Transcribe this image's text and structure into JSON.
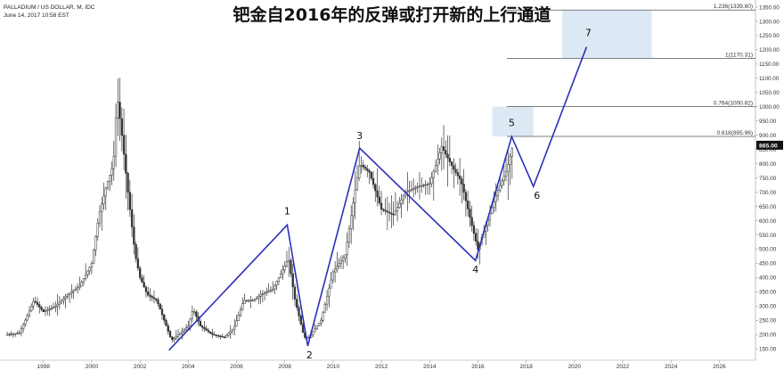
{
  "header": {
    "title": "钯金自2016年的反弹或打开新的上行通道",
    "symbol": "PALLADIUM / US DOLLAR, M, IDC",
    "timestamp": "June 14, 2017 10:58 EST"
  },
  "chart_data": {
    "type": "candlestick",
    "x_ticks": [
      "1998",
      "2000",
      "2002",
      "2004",
      "2006",
      "2008",
      "2010",
      "2012",
      "2014",
      "2016",
      "2018",
      "2020",
      "2022",
      "2024",
      "2026"
    ],
    "x_tick_years": [
      1998,
      2000,
      2002,
      2004,
      2006,
      2008,
      2010,
      2012,
      2014,
      2016,
      2018,
      2020,
      2022,
      2024,
      2026
    ],
    "xlim": [
      1996.2,
      2027.5
    ],
    "y_ticks": [
      150,
      200,
      250,
      300,
      350,
      400,
      450,
      500,
      550,
      600,
      650,
      700,
      750,
      800,
      850,
      900,
      950,
      1000,
      1050,
      1100,
      1150,
      1200,
      1250,
      1300,
      1350
    ],
    "ylim": [
      110,
      1375
    ],
    "current_price": {
      "label": "865.00",
      "value": 865
    },
    "fib_levels": [
      {
        "label": "1.236(1339.80)",
        "value": 1339.8
      },
      {
        "label": "1(1170.31)",
        "value": 1170.31
      },
      {
        "label": "0.764(1000.82)",
        "value": 1000.82
      },
      {
        "label": "0.618(895.96)",
        "value": 895.96
      }
    ],
    "target_zones": [
      {
        "x_from": 2016.6,
        "x_to": 2018.3,
        "y_from": 895.96,
        "y_to": 1000.82
      },
      {
        "x_from": 2019.5,
        "x_to": 2023.2,
        "y_from": 1170.31,
        "y_to": 1339.8
      }
    ],
    "wave_points": [
      {
        "label": "",
        "x": 2003.2,
        "y": 145
      },
      {
        "label": "1",
        "x": 2008.1,
        "y": 585
      },
      {
        "label": "2",
        "x": 2008.95,
        "y": 160
      },
      {
        "label": "3",
        "x": 2011.1,
        "y": 855
      },
      {
        "label": "4",
        "x": 2015.9,
        "y": 460
      },
      {
        "label": "5",
        "x": 2017.4,
        "y": 895
      },
      {
        "label": "6",
        "x": 2018.3,
        "y": 720
      },
      {
        "label": "7",
        "x": 2020.5,
        "y": 1210
      }
    ],
    "price_anchors": [
      [
        1996.5,
        200
      ],
      [
        1997.0,
        205
      ],
      [
        1997.3,
        260
      ],
      [
        1997.6,
        320
      ],
      [
        1998.0,
        280
      ],
      [
        1998.5,
        300
      ],
      [
        1999.0,
        340
      ],
      [
        1999.5,
        370
      ],
      [
        2000.0,
        450
      ],
      [
        2000.3,
        620
      ],
      [
        2000.6,
        720
      ],
      [
        2000.9,
        800
      ],
      [
        2001.05,
        1040
      ],
      [
        2001.25,
        900
      ],
      [
        2001.5,
        700
      ],
      [
        2001.8,
        480
      ],
      [
        2002.0,
        400
      ],
      [
        2002.3,
        340
      ],
      [
        2002.7,
        320
      ],
      [
        2003.0,
        250
      ],
      [
        2003.3,
        180
      ],
      [
        2003.6,
        200
      ],
      [
        2004.0,
        230
      ],
      [
        2004.2,
        290
      ],
      [
        2004.5,
        230
      ],
      [
        2005.0,
        200
      ],
      [
        2005.5,
        190
      ],
      [
        2005.9,
        225
      ],
      [
        2006.3,
        320
      ],
      [
        2006.7,
        320
      ],
      [
        2007.0,
        340
      ],
      [
        2007.5,
        360
      ],
      [
        2008.0,
        440
      ],
      [
        2008.15,
        470
      ],
      [
        2008.4,
        330
      ],
      [
        2008.8,
        190
      ],
      [
        2009.0,
        190
      ],
      [
        2009.5,
        250
      ],
      [
        2010.0,
        420
      ],
      [
        2010.5,
        480
      ],
      [
        2010.9,
        700
      ],
      [
        2011.1,
        800
      ],
      [
        2011.5,
        770
      ],
      [
        2012.0,
        640
      ],
      [
        2012.5,
        620
      ],
      [
        2013.0,
        700
      ],
      [
        2013.5,
        720
      ],
      [
        2014.0,
        730
      ],
      [
        2014.5,
        860
      ],
      [
        2015.0,
        780
      ],
      [
        2015.3,
        740
      ],
      [
        2015.7,
        600
      ],
      [
        2016.0,
        500
      ],
      [
        2016.4,
        600
      ],
      [
        2016.8,
        700
      ],
      [
        2017.2,
        780
      ],
      [
        2017.45,
        865
      ]
    ]
  }
}
